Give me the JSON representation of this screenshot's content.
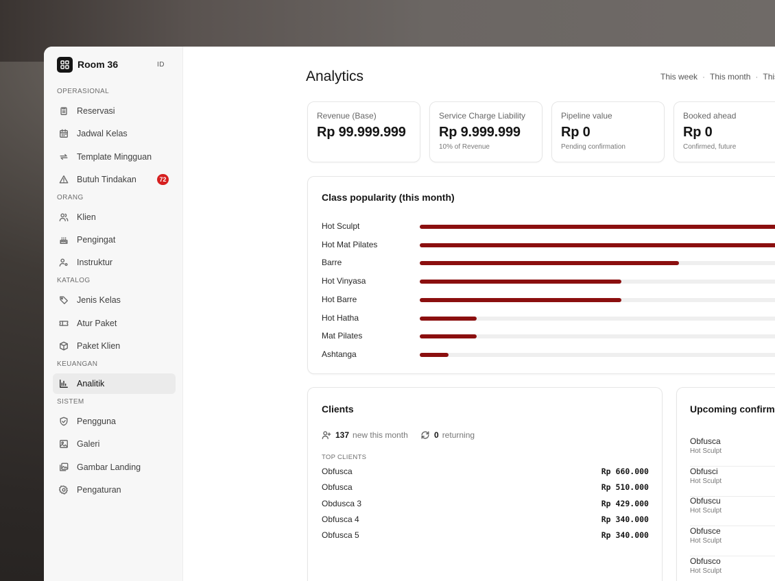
{
  "brand": {
    "name": "Room 36",
    "lang": "ID"
  },
  "sidebar": {
    "sections": [
      {
        "title": "OPERASIONAL",
        "items": [
          {
            "label": "Reservasi",
            "icon": "clipboard-icon"
          },
          {
            "label": "Jadwal Kelas",
            "icon": "calendar-icon"
          },
          {
            "label": "Template Mingguan",
            "icon": "repeat-icon"
          },
          {
            "label": "Butuh Tindakan",
            "icon": "warning-icon",
            "badge": "72"
          }
        ]
      },
      {
        "title": "ORANG",
        "items": [
          {
            "label": "Klien",
            "icon": "users-icon"
          },
          {
            "label": "Pengingat",
            "icon": "cake-icon"
          },
          {
            "label": "Instruktur",
            "icon": "user-settings-icon"
          }
        ]
      },
      {
        "title": "KATALOG",
        "items": [
          {
            "label": "Jenis Kelas",
            "icon": "tag-icon"
          },
          {
            "label": "Atur Paket",
            "icon": "ticket-icon"
          },
          {
            "label": "Paket Klien",
            "icon": "package-icon"
          }
        ]
      },
      {
        "title": "KEUANGAN",
        "items": [
          {
            "label": "Analitik",
            "icon": "bar-chart-icon",
            "active": true
          }
        ]
      },
      {
        "title": "SISTEM",
        "items": [
          {
            "label": "Pengguna",
            "icon": "shield-icon"
          },
          {
            "label": "Galeri",
            "icon": "image-icon"
          },
          {
            "label": "Gambar Landing",
            "icon": "images-icon"
          },
          {
            "label": "Pengaturan",
            "icon": "gear-icon"
          }
        ]
      }
    ]
  },
  "header": {
    "title": "Analytics",
    "ranges": [
      "This week",
      "This month",
      "This"
    ]
  },
  "kpis": [
    {
      "label": "Revenue (Base)",
      "value": "Rp 99.999.999",
      "sub": ""
    },
    {
      "label": "Service Charge Liability",
      "value": "Rp 9.999.999",
      "sub": "10% of Revenue"
    },
    {
      "label": "Pipeline value",
      "value": "Rp 0",
      "sub": "Pending confirmation"
    },
    {
      "label": "Booked ahead",
      "value": "Rp 0",
      "sub": "Confirmed, future"
    }
  ],
  "popularity": {
    "title": "Class popularity (this month)",
    "classes": [
      {
        "label": "Hot Sculpt",
        "share": 1.0
      },
      {
        "label": "Hot Mat Pilates",
        "share": 1.0
      },
      {
        "label": "Barre",
        "share": 0.59
      },
      {
        "label": "Hot Vinyasa",
        "share": 0.46
      },
      {
        "label": "Hot Barre",
        "share": 0.46
      },
      {
        "label": "Hot Hatha",
        "share": 0.13
      },
      {
        "label": "Mat Pilates",
        "share": 0.13
      },
      {
        "label": "Ashtanga",
        "share": 0.065
      }
    ]
  },
  "clients": {
    "title": "Clients",
    "new_count": "137",
    "new_label": "new this month",
    "returning_count": "0",
    "returning_label": "returning",
    "top_label": "TOP CLIENTS",
    "top": [
      {
        "name": "Obfusca",
        "amount": "Rp 660.000"
      },
      {
        "name": "Obfusca",
        "amount": "Rp 510.000"
      },
      {
        "name": "Obdusca 3",
        "amount": "Rp 429.000"
      },
      {
        "name": "Obfusca 4",
        "amount": "Rp 340.000"
      },
      {
        "name": "Obfusca 5",
        "amount": "Rp 340.000"
      }
    ]
  },
  "upcoming": {
    "title": "Upcoming confirmed",
    "items": [
      {
        "name": "Obfusca",
        "class": "Hot Sculpt"
      },
      {
        "name": "Obfusci",
        "class": "Hot Sculpt"
      },
      {
        "name": "Obfuscu",
        "class": "Hot Sculpt"
      },
      {
        "name": "Obfusce",
        "class": "Hot Sculpt"
      },
      {
        "name": "Obfusco",
        "class": "Hot Sculpt"
      }
    ]
  },
  "colors": {
    "accent": "#8b0f0f",
    "badge": "#d62020",
    "sidebar_bg": "#f7f7f7"
  }
}
